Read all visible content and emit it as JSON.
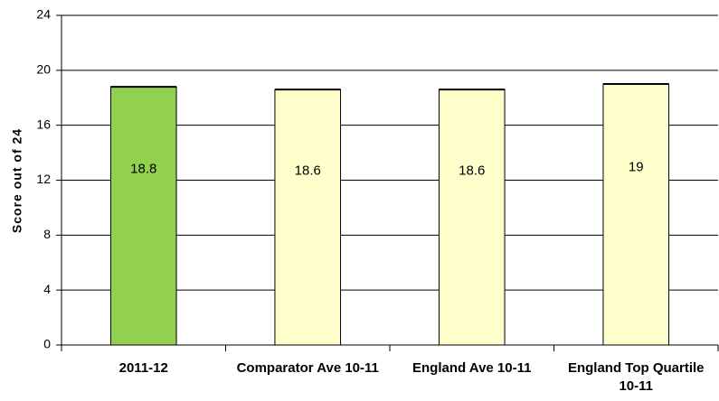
{
  "chart_data": {
    "type": "bar",
    "y_label": "Score out of 24",
    "categories": [
      "2011-12",
      "Comparator Ave 10-11",
      "England Ave 10-11",
      "England Top Quartile 10-11"
    ],
    "values": [
      18.8,
      18.6,
      18.6,
      19
    ],
    "colors": [
      "#92d050",
      "#ffffcc",
      "#ffffcc",
      "#ffffcc"
    ],
    "ylim": [
      0,
      24
    ],
    "yticks": [
      0,
      4,
      8,
      12,
      16,
      20,
      24
    ],
    "grid": true
  }
}
